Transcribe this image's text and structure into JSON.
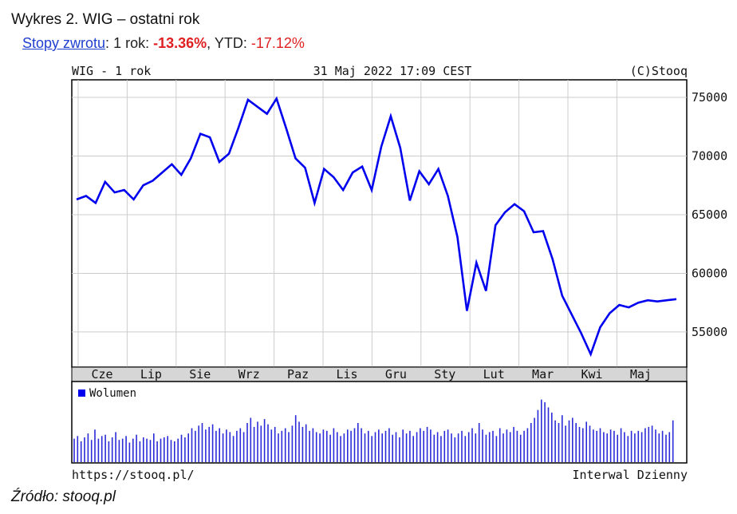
{
  "header": {
    "title": "Wykres 2. WIG – ostatni rok",
    "returns_link": "Stopy zwrotu",
    "returns_sep": ":",
    "one_year_label": " 1 rok: ",
    "one_year_value": "-13.36%",
    "ytd_label": ", YTD: ",
    "ytd_value": "-17.12%"
  },
  "chart_header": {
    "left": "WIG - 1 rok",
    "center": "31 Maj 2022 17:09 CEST",
    "right": "(C)Stooq"
  },
  "chart_footer": {
    "left": "https://stooq.pl/",
    "right": "Interwal Dzienny"
  },
  "source": "Źródło: stooq.pl",
  "colors": {
    "series": "#0000ee",
    "grid": "#cccccc",
    "axis_band": "#d6d6d6"
  },
  "chart_data": [
    {
      "type": "line",
      "title": "WIG - 1 rok",
      "series": [],
      "ylim": [
        52000,
        76500
      ],
      "yticks": [
        55000,
        60000,
        65000,
        70000,
        75000
      ],
      "categories": [
        "Cze",
        "Lip",
        "Sie",
        "Wrz",
        "Paz",
        "Lis",
        "Gru",
        "Sty",
        "Lut",
        "Mar",
        "Kwi",
        "Maj"
      ],
      "x": [
        0,
        4,
        8,
        12,
        16,
        20,
        24,
        28,
        32,
        36,
        40,
        44,
        48,
        52,
        56,
        60,
        64,
        68,
        72,
        76,
        80,
        84,
        88,
        92,
        96,
        100,
        104,
        108,
        112,
        116,
        120,
        124,
        128,
        132,
        136,
        140,
        144,
        148,
        152,
        156,
        160,
        164,
        168,
        172,
        176,
        180,
        184,
        188,
        192,
        196,
        200,
        204,
        208,
        212,
        216,
        220,
        224,
        228,
        232,
        236,
        240,
        244,
        248,
        252
      ],
      "values": [
        66300,
        66600,
        66000,
        67800,
        66900,
        67100,
        66300,
        67500,
        67900,
        68600,
        69300,
        68400,
        69800,
        71900,
        71600,
        69500,
        70200,
        72400,
        74800,
        74200,
        73600,
        74900,
        72400,
        69800,
        69000,
        66000,
        68900,
        68200,
        67100,
        68600,
        69100,
        67100,
        70800,
        73400,
        70700,
        66200,
        68700,
        67600,
        68900,
        66600,
        63100,
        56800,
        60900,
        58500,
        64100,
        65200,
        65900,
        65300,
        63500,
        63600,
        61200,
        58100,
        56500,
        54900,
        53100,
        55400,
        56600,
        57300,
        57100,
        57500,
        57700,
        57600,
        57700,
        57800
      ],
      "grid": true,
      "legend": "none"
    },
    {
      "type": "bar",
      "title": "Wolumen",
      "series": [
        {
          "name": "Wolumen"
        }
      ],
      "grid": false,
      "legend": "top-left",
      "values": [
        18,
        20,
        16,
        19,
        22,
        17,
        25,
        18,
        20,
        21,
        16,
        19,
        23,
        17,
        18,
        20,
        15,
        18,
        21,
        16,
        19,
        18,
        17,
        22,
        16,
        18,
        19,
        20,
        17,
        16,
        18,
        21,
        19,
        22,
        26,
        24,
        28,
        30,
        25,
        27,
        29,
        24,
        26,
        22,
        25,
        23,
        20,
        24,
        26,
        23,
        30,
        34,
        27,
        31,
        28,
        33,
        29,
        25,
        27,
        22,
        24,
        26,
        23,
        28,
        36,
        31,
        27,
        29,
        24,
        26,
        23,
        22,
        25,
        24,
        21,
        26,
        23,
        20,
        22,
        25,
        24,
        26,
        30,
        26,
        22,
        24,
        20,
        23,
        25,
        22,
        24,
        26,
        21,
        23,
        19,
        25,
        22,
        24,
        20,
        23,
        26,
        24,
        27,
        25,
        21,
        23,
        20,
        24,
        25,
        22,
        19,
        22,
        24,
        20,
        23,
        26,
        22,
        30,
        25,
        21,
        23,
        24,
        20,
        26,
        22,
        25,
        23,
        27,
        24,
        21,
        24,
        26,
        30,
        34,
        40,
        48,
        46,
        42,
        38,
        32,
        30,
        36,
        28,
        32,
        34,
        30,
        27,
        26,
        31,
        28,
        25,
        24,
        26,
        23,
        22,
        25,
        24,
        21,
        26,
        23,
        20,
        24,
        22,
        24,
        23,
        26,
        27,
        28,
        25,
        22,
        24,
        21,
        23,
        32
      ]
    }
  ]
}
